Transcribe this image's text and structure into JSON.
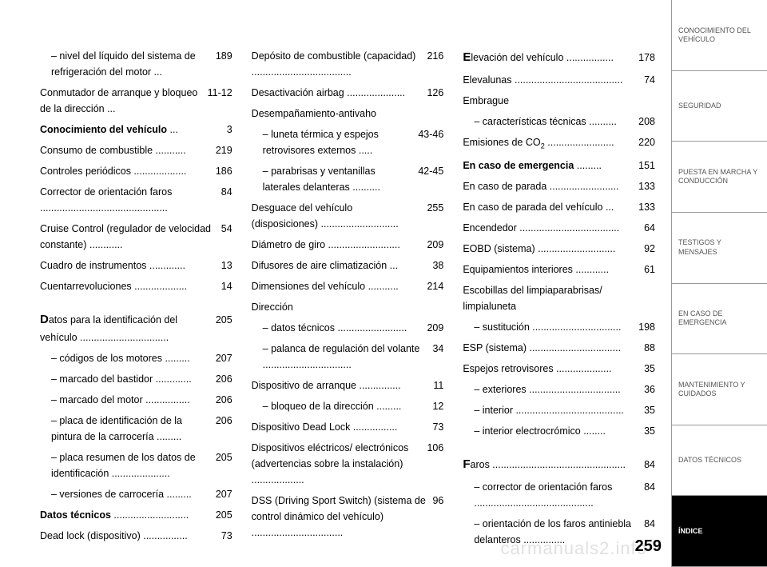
{
  "page_number": "259",
  "watermark": "carmanuals2.info",
  "columns": [
    [
      {
        "label": "– nivel del líquido del sistema de refrigeración del motor ...",
        "page": "189",
        "indent": 1
      },
      {
        "label": "Conmutador de arranque y bloqueo de la dirección ...",
        "page": "11-12"
      },
      {
        "label_bold": "Conocimiento del vehículo",
        "dots": " ...",
        "page": "3"
      },
      {
        "label": "Consumo de combustible ...........",
        "page": "219"
      },
      {
        "label": "Controles periódicos ...................",
        "page": "186"
      },
      {
        "label": "Corrector de orientación faros ..............................................",
        "page": "84"
      },
      {
        "label": "Cruise Control (regulador de velocidad constante) ............",
        "page": "54"
      },
      {
        "label": "Cuadro de instrumentos .............",
        "page": "13"
      },
      {
        "label": "Cuentarrevoluciones ...................",
        "page": "14"
      },
      {
        "gap": true
      },
      {
        "cap": "D",
        "label": "atos para la identificación del vehículo ................................",
        "page": "205"
      },
      {
        "label": "– códigos de los motores .........",
        "page": "207",
        "indent": 1
      },
      {
        "label": "– marcado del bastidor .............",
        "page": "206",
        "indent": 1
      },
      {
        "label": "– marcado del motor ................",
        "page": "206",
        "indent": 1
      },
      {
        "label": "– placa de identificación de la pintura de la carrocería .........",
        "page": "206",
        "indent": 1
      },
      {
        "label": "– placa resumen de los datos de identificación .....................",
        "page": "205",
        "indent": 1
      },
      {
        "label": "– versiones de carrocería .........",
        "page": "207",
        "indent": 1
      },
      {
        "label_bold": "Datos técnicos",
        "dots": " ...........................",
        "page": "205"
      },
      {
        "label": "Dead lock (dispositivo) ................",
        "page": "73"
      }
    ],
    [
      {
        "label": "Depósito de combustible (capacidad) ....................................",
        "page": "216"
      },
      {
        "label": "Desactivación airbag .....................",
        "page": "126"
      },
      {
        "label": "Desempañamiento-antivaho",
        "page": ""
      },
      {
        "label": "– luneta térmica y espejos retrovisores externos .....",
        "page": "43-46",
        "indent": 1
      },
      {
        "label": "– parabrisas y ventanillas laterales delanteras ..........",
        "page": "42-45",
        "indent": 1
      },
      {
        "label": "Desguace del vehículo (disposiciones) ............................",
        "page": "255"
      },
      {
        "label": "Diámetro de giro ..........................",
        "page": "209"
      },
      {
        "label": "Difusores de aire climatización ...",
        "page": "38"
      },
      {
        "label": "Dimensiones del vehículo ...........",
        "page": "214"
      },
      {
        "label": "Dirección",
        "page": ""
      },
      {
        "label": "– datos técnicos .........................",
        "page": "209",
        "indent": 1
      },
      {
        "label": "– palanca de regulación del volante ................................",
        "page": "34",
        "indent": 1
      },
      {
        "label": "Dispositivo de arranque ...............",
        "page": "11"
      },
      {
        "label": "– bloqueo de la dirección .........",
        "page": "12",
        "indent": 1
      },
      {
        "label": "Dispositivo Dead Lock ................",
        "page": "73"
      },
      {
        "label": "Dispositivos eléctricos/ electrónicos (advertencias sobre la instalación) ...................",
        "page": "106"
      },
      {
        "label": "DSS (Driving Sport Switch) (sistema de control dinámico del vehículo) .................................",
        "page": "96"
      }
    ],
    [
      {
        "cap": "E",
        "label": "levación del vehículo .................",
        "page": "178"
      },
      {
        "label": "Elevalunas .......................................",
        "page": "74"
      },
      {
        "label": "Embrague",
        "page": ""
      },
      {
        "label": "– características técnicas ..........",
        "page": "208",
        "indent": 1
      },
      {
        "label_html": "Emisiones de CO<span class=\"subscript\">2</span> ........................",
        "page": "220"
      },
      {
        "label_bold": "En caso de emergencia",
        "dots": " .........",
        "page": "151"
      },
      {
        "label": "En caso de parada .........................",
        "page": "133"
      },
      {
        "label": "En caso de parada del vehículo ...",
        "page": "133"
      },
      {
        "label": "Encendedor ....................................",
        "page": "64"
      },
      {
        "label": "EOBD (sistema) ............................",
        "page": "92"
      },
      {
        "label": "Equipamientos interiores ............",
        "page": "61"
      },
      {
        "label": "Escobillas del limpiaparabrisas/ limpialuneta",
        "page": ""
      },
      {
        "label": "– sustitución ................................",
        "page": "198",
        "indent": 1
      },
      {
        "label": "ESP (sistema) .................................",
        "page": "88"
      },
      {
        "label": "Espejos retrovisores ....................",
        "page": "35"
      },
      {
        "label": "– exteriores .................................",
        "page": "36",
        "indent": 1
      },
      {
        "label": "– interior .......................................",
        "page": "35",
        "indent": 1
      },
      {
        "label": "– interior electrocrómico ........",
        "page": "35",
        "indent": 1
      },
      {
        "gap": true
      },
      {
        "cap": "F",
        "label": "aros ................................................",
        "page": "84"
      },
      {
        "label": "– corrector de orientación faros ...........................................",
        "page": "84",
        "indent": 1
      },
      {
        "label": "– orientación de los faros antiniebla delanteros ...............",
        "page": "84",
        "indent": 1
      }
    ]
  ],
  "tabs": [
    {
      "label": "CONOCIMIENTO DEL VEHÍCULO",
      "active": false
    },
    {
      "label": "SEGURIDAD",
      "active": false
    },
    {
      "label": "PUESTA EN MARCHA Y CONDUCCIÓN",
      "active": false
    },
    {
      "label": "TESTIGOS Y MENSAJES",
      "active": false
    },
    {
      "label": "EN CASO DE EMERGENCIA",
      "active": false
    },
    {
      "label": "MANTENIMIENTO Y CUIDADOS",
      "active": false
    },
    {
      "label": "DATOS TÉCNICOS",
      "active": false
    },
    {
      "label": "ÍNDICE",
      "active": true
    }
  ]
}
